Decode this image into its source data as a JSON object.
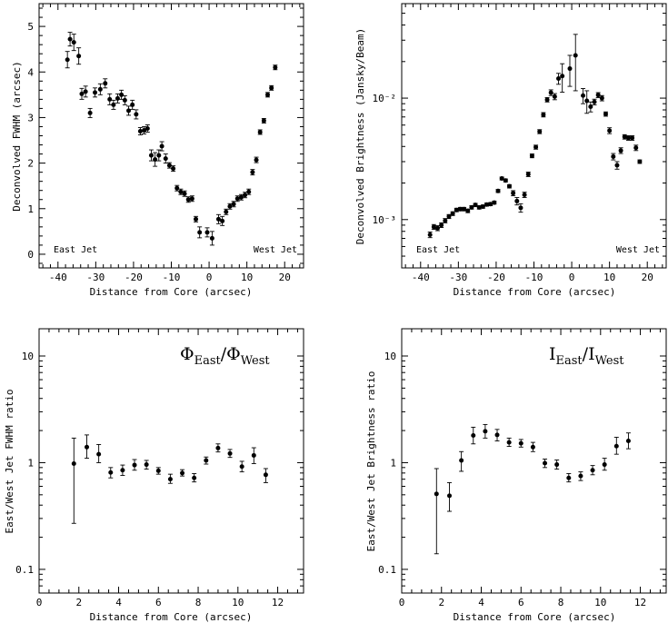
{
  "chart_data": [
    {
      "type": "scatter",
      "xlabel": "Distance from Core (arcsec)",
      "ylabel": "Deconvolved FWHM (arcsec)",
      "xlim": [
        -45,
        25
      ],
      "ylim": [
        -0.3,
        5.5
      ],
      "yscale": "linear",
      "xticks": [
        -40,
        -30,
        -20,
        -10,
        0,
        10,
        20
      ],
      "yticks": [
        0,
        1,
        2,
        3,
        4,
        5
      ],
      "annotations": {
        "left": "East Jet",
        "right": "West Jet"
      },
      "points": [
        {
          "x": -37.5,
          "y": 4.27,
          "e": 0.18
        },
        {
          "x": -36.8,
          "y": 4.72,
          "e": 0.15
        },
        {
          "x": -35.8,
          "y": 4.65,
          "e": 0.18
        },
        {
          "x": -34.5,
          "y": 4.35,
          "e": 0.18
        },
        {
          "x": -33.7,
          "y": 3.52,
          "e": 0.12
        },
        {
          "x": -32.7,
          "y": 3.57,
          "e": 0.12
        },
        {
          "x": -31.5,
          "y": 3.1,
          "e": 0.1
        },
        {
          "x": -30.2,
          "y": 3.55,
          "e": 0.1
        },
        {
          "x": -28.8,
          "y": 3.62,
          "e": 0.12
        },
        {
          "x": -27.5,
          "y": 3.75,
          "e": 0.1
        },
        {
          "x": -26.3,
          "y": 3.4,
          "e": 0.12
        },
        {
          "x": -25.3,
          "y": 3.28,
          "e": 0.1
        },
        {
          "x": -24.2,
          "y": 3.42,
          "e": 0.1
        },
        {
          "x": -23.2,
          "y": 3.5,
          "e": 0.1
        },
        {
          "x": -22.3,
          "y": 3.38,
          "e": 0.1
        },
        {
          "x": -21.3,
          "y": 3.15,
          "e": 0.1
        },
        {
          "x": -20.3,
          "y": 3.28,
          "e": 0.1
        },
        {
          "x": -19.3,
          "y": 3.07,
          "e": 0.1
        },
        {
          "x": -18.2,
          "y": 2.7,
          "e": 0.08
        },
        {
          "x": -17.2,
          "y": 2.72,
          "e": 0.08
        },
        {
          "x": -16.3,
          "y": 2.76,
          "e": 0.08
        },
        {
          "x": -15.3,
          "y": 2.17,
          "e": 0.12
        },
        {
          "x": -14.3,
          "y": 2.08,
          "e": 0.15
        },
        {
          "x": -13.3,
          "y": 2.17,
          "e": 0.12
        },
        {
          "x": -12.5,
          "y": 2.37,
          "e": 0.1
        },
        {
          "x": -11.5,
          "y": 2.1,
          "e": 0.1
        },
        {
          "x": -10.5,
          "y": 1.95,
          "e": 0.06
        },
        {
          "x": -9.5,
          "y": 1.88,
          "e": 0.06
        },
        {
          "x": -8.5,
          "y": 1.45,
          "e": 0.06
        },
        {
          "x": -7.5,
          "y": 1.37,
          "e": 0.06
        },
        {
          "x": -6.5,
          "y": 1.33,
          "e": 0.06
        },
        {
          "x": -5.5,
          "y": 1.2,
          "e": 0.06
        },
        {
          "x": -4.5,
          "y": 1.22,
          "e": 0.06
        },
        {
          "x": -3.5,
          "y": 0.77,
          "e": 0.06
        },
        {
          "x": -2.5,
          "y": 0.48,
          "e": 0.12
        },
        {
          "x": -0.5,
          "y": 0.48,
          "e": 0.1
        },
        {
          "x": 0.8,
          "y": 0.35,
          "e": 0.15
        },
        {
          "x": 2.5,
          "y": 0.77,
          "e": 0.1
        },
        {
          "x": 3.5,
          "y": 0.73,
          "e": 0.1
        },
        {
          "x": 4.5,
          "y": 0.93,
          "e": 0.06
        },
        {
          "x": 5.5,
          "y": 1.05,
          "e": 0.06
        },
        {
          "x": 6.5,
          "y": 1.1,
          "e": 0.06
        },
        {
          "x": 7.5,
          "y": 1.22,
          "e": 0.06
        },
        {
          "x": 8.5,
          "y": 1.25,
          "e": 0.06
        },
        {
          "x": 9.5,
          "y": 1.3,
          "e": 0.06
        },
        {
          "x": 10.5,
          "y": 1.37,
          "e": 0.06
        },
        {
          "x": 11.5,
          "y": 1.8,
          "e": 0.06
        },
        {
          "x": 12.5,
          "y": 2.07,
          "e": 0.06
        },
        {
          "x": 13.5,
          "y": 2.68,
          "e": 0.05
        },
        {
          "x": 14.5,
          "y": 2.93,
          "e": 0.05
        },
        {
          "x": 15.5,
          "y": 3.5,
          "e": 0.05
        },
        {
          "x": 16.5,
          "y": 3.65,
          "e": 0.05
        },
        {
          "x": 17.5,
          "y": 4.1,
          "e": 0.05
        }
      ]
    },
    {
      "type": "scatter",
      "xlabel": "Distance from Core (arcsec)",
      "ylabel": "Deconvolved Brightness (Jansky/Beam)",
      "xlim": [
        -45,
        25
      ],
      "ylim": [
        0.0004,
        0.06
      ],
      "yscale": "log",
      "xticks": [
        -40,
        -30,
        -20,
        -10,
        0,
        10,
        20
      ],
      "ytick_labels": [
        "10⁻³",
        "10⁻²"
      ],
      "annotations": {
        "left": "East Jet",
        "right": "West Jet"
      },
      "points": [
        {
          "x": -37.5,
          "y": 0.00075,
          "e": 4e-05
        },
        {
          "x": -36.5,
          "y": 0.00087,
          "e": 4e-05
        },
        {
          "x": -35.5,
          "y": 0.00085,
          "e": 4e-05
        },
        {
          "x": -34.5,
          "y": 0.0009,
          "e": 4e-05
        },
        {
          "x": -33.5,
          "y": 0.00098,
          "e": 4e-05
        },
        {
          "x": -32.5,
          "y": 0.00106,
          "e": 4e-05
        },
        {
          "x": -31.5,
          "y": 0.00112,
          "e": 4e-05
        },
        {
          "x": -30.5,
          "y": 0.0012,
          "e": 4e-05
        },
        {
          "x": -29.5,
          "y": 0.00122,
          "e": 4e-05
        },
        {
          "x": -28.5,
          "y": 0.00122,
          "e": 4e-05
        },
        {
          "x": -27.5,
          "y": 0.00118,
          "e": 4e-05
        },
        {
          "x": -26.5,
          "y": 0.00126,
          "e": 4e-05
        },
        {
          "x": -25.5,
          "y": 0.00132,
          "e": 4e-05
        },
        {
          "x": -24.5,
          "y": 0.00126,
          "e": 4e-05
        },
        {
          "x": -23.5,
          "y": 0.00128,
          "e": 4e-05
        },
        {
          "x": -22.5,
          "y": 0.00133,
          "e": 4e-05
        },
        {
          "x": -21.5,
          "y": 0.00134,
          "e": 4e-05
        },
        {
          "x": -20.5,
          "y": 0.00138,
          "e": 4e-05
        },
        {
          "x": -19.5,
          "y": 0.00172,
          "e": 5e-05
        },
        {
          "x": -18.5,
          "y": 0.00218,
          "e": 6e-05
        },
        {
          "x": -17.5,
          "y": 0.0021,
          "e": 6e-05
        },
        {
          "x": -16.5,
          "y": 0.00188,
          "e": 6e-05
        },
        {
          "x": -15.5,
          "y": 0.00165,
          "e": 8e-05
        },
        {
          "x": -14.5,
          "y": 0.00142,
          "e": 0.0001
        },
        {
          "x": -13.5,
          "y": 0.00125,
          "e": 0.0001
        },
        {
          "x": -12.5,
          "y": 0.0016,
          "e": 8e-05
        },
        {
          "x": -11.5,
          "y": 0.00236,
          "e": 0.0001
        },
        {
          "x": -10.5,
          "y": 0.00335,
          "e": 0.00012
        },
        {
          "x": -9.5,
          "y": 0.00395,
          "e": 0.00015
        },
        {
          "x": -8.5,
          "y": 0.0053,
          "e": 0.0002
        },
        {
          "x": -7.5,
          "y": 0.0073,
          "e": 0.0003
        },
        {
          "x": -6.5,
          "y": 0.0097,
          "e": 0.0004
        },
        {
          "x": -5.5,
          "y": 0.0111,
          "e": 0.0006
        },
        {
          "x": -4.5,
          "y": 0.0103,
          "e": 0.0006
        },
        {
          "x": -3.5,
          "y": 0.0145,
          "e": 0.0015
        },
        {
          "x": -2.5,
          "y": 0.0152,
          "e": 0.004
        },
        {
          "x": -0.5,
          "y": 0.0175,
          "e": 0.005
        },
        {
          "x": 1,
          "y": 0.0225,
          "e": 0.011
        },
        {
          "x": 3,
          "y": 0.0105,
          "e": 0.0015
        },
        {
          "x": 4,
          "y": 0.0095,
          "e": 0.002
        },
        {
          "x": 5,
          "y": 0.0085,
          "e": 0.0008
        },
        {
          "x": 6,
          "y": 0.0093,
          "e": 0.0005
        },
        {
          "x": 7,
          "y": 0.0106,
          "e": 0.0005
        },
        {
          "x": 8,
          "y": 0.01,
          "e": 0.0005
        },
        {
          "x": 9,
          "y": 0.0074,
          "e": 0.0003
        },
        {
          "x": 10,
          "y": 0.0054,
          "e": 0.0003
        },
        {
          "x": 11,
          "y": 0.0033,
          "e": 0.0002
        },
        {
          "x": 12,
          "y": 0.0028,
          "e": 0.0002
        },
        {
          "x": 13,
          "y": 0.0037,
          "e": 0.0002
        },
        {
          "x": 14,
          "y": 0.0048,
          "e": 0.0002
        },
        {
          "x": 15,
          "y": 0.0047,
          "e": 0.0002
        },
        {
          "x": 16,
          "y": 0.0047,
          "e": 0.0002
        },
        {
          "x": 17,
          "y": 0.0039,
          "e": 0.0002
        },
        {
          "x": 18,
          "y": 0.003,
          "e": 0.0001
        }
      ]
    },
    {
      "type": "scatter",
      "xlabel": "Distance from Core (arcsec)",
      "ylabel": "East/West Jet FWHM ratio",
      "xlim": [
        0,
        13.3
      ],
      "ylim": [
        0.06,
        18
      ],
      "yscale": "log",
      "xticks": [
        0,
        2,
        4,
        6,
        8,
        10,
        12
      ],
      "yticks": [
        0.1,
        1,
        10
      ],
      "ratio_label": {
        "main": "Φ",
        "sub1": "East",
        "slash": "/",
        "main2": "Φ",
        "sub2": "West"
      },
      "points": [
        {
          "x": 1.75,
          "y": 0.98,
          "lo": 0.27,
          "hi": 1.7
        },
        {
          "x": 2.4,
          "y": 1.4,
          "lo": 1.1,
          "hi": 1.82
        },
        {
          "x": 3.0,
          "y": 1.2,
          "lo": 1.0,
          "hi": 1.48
        },
        {
          "x": 3.6,
          "y": 0.81,
          "lo": 0.72,
          "hi": 0.9
        },
        {
          "x": 4.2,
          "y": 0.85,
          "lo": 0.76,
          "hi": 0.95
        },
        {
          "x": 4.8,
          "y": 0.95,
          "lo": 0.85,
          "hi": 1.07
        },
        {
          "x": 5.4,
          "y": 0.96,
          "lo": 0.87,
          "hi": 1.05
        },
        {
          "x": 6.0,
          "y": 0.84,
          "lo": 0.78,
          "hi": 0.9
        },
        {
          "x": 6.6,
          "y": 0.7,
          "lo": 0.64,
          "hi": 0.78
        },
        {
          "x": 7.2,
          "y": 0.8,
          "lo": 0.75,
          "hi": 0.86
        },
        {
          "x": 7.8,
          "y": 0.72,
          "lo": 0.66,
          "hi": 0.79
        },
        {
          "x": 8.4,
          "y": 1.05,
          "lo": 0.97,
          "hi": 1.13
        },
        {
          "x": 9.0,
          "y": 1.37,
          "lo": 1.26,
          "hi": 1.5
        },
        {
          "x": 9.6,
          "y": 1.22,
          "lo": 1.12,
          "hi": 1.33
        },
        {
          "x": 10.2,
          "y": 0.92,
          "lo": 0.82,
          "hi": 1.03
        },
        {
          "x": 10.8,
          "y": 1.17,
          "lo": 0.98,
          "hi": 1.38
        },
        {
          "x": 11.4,
          "y": 0.77,
          "lo": 0.65,
          "hi": 0.88
        }
      ]
    },
    {
      "type": "scatter",
      "xlabel": "Distance from Core (arcsec)",
      "ylabel": "East/West Jet Brightness ratio",
      "xlim": [
        0,
        13.3
      ],
      "ylim": [
        0.06,
        18
      ],
      "yscale": "log",
      "xticks": [
        0,
        2,
        4,
        6,
        8,
        10,
        12
      ],
      "yticks": [
        0.1,
        1,
        10
      ],
      "ratio_label": {
        "main": "I",
        "sub1": "East",
        "slash": "/",
        "main2": "I",
        "sub2": "West"
      },
      "points": [
        {
          "x": 1.75,
          "y": 0.51,
          "lo": 0.14,
          "hi": 0.88
        },
        {
          "x": 2.4,
          "y": 0.49,
          "lo": 0.35,
          "hi": 0.65
        },
        {
          "x": 3.0,
          "y": 1.05,
          "lo": 0.83,
          "hi": 1.27
        },
        {
          "x": 3.6,
          "y": 1.8,
          "lo": 1.5,
          "hi": 2.15
        },
        {
          "x": 4.2,
          "y": 1.97,
          "lo": 1.7,
          "hi": 2.28
        },
        {
          "x": 4.8,
          "y": 1.82,
          "lo": 1.6,
          "hi": 2.05
        },
        {
          "x": 5.4,
          "y": 1.55,
          "lo": 1.42,
          "hi": 1.7
        },
        {
          "x": 6.0,
          "y": 1.52,
          "lo": 1.4,
          "hi": 1.65
        },
        {
          "x": 6.6,
          "y": 1.4,
          "lo": 1.27,
          "hi": 1.55
        },
        {
          "x": 7.2,
          "y": 0.99,
          "lo": 0.9,
          "hi": 1.08
        },
        {
          "x": 7.8,
          "y": 0.96,
          "lo": 0.87,
          "hi": 1.06
        },
        {
          "x": 8.4,
          "y": 0.72,
          "lo": 0.66,
          "hi": 0.79
        },
        {
          "x": 9.0,
          "y": 0.75,
          "lo": 0.68,
          "hi": 0.82
        },
        {
          "x": 9.6,
          "y": 0.85,
          "lo": 0.77,
          "hi": 0.94
        },
        {
          "x": 10.2,
          "y": 0.96,
          "lo": 0.85,
          "hi": 1.1
        },
        {
          "x": 10.8,
          "y": 1.43,
          "lo": 1.2,
          "hi": 1.73
        },
        {
          "x": 11.4,
          "y": 1.6,
          "lo": 1.35,
          "hi": 1.9
        }
      ]
    }
  ]
}
